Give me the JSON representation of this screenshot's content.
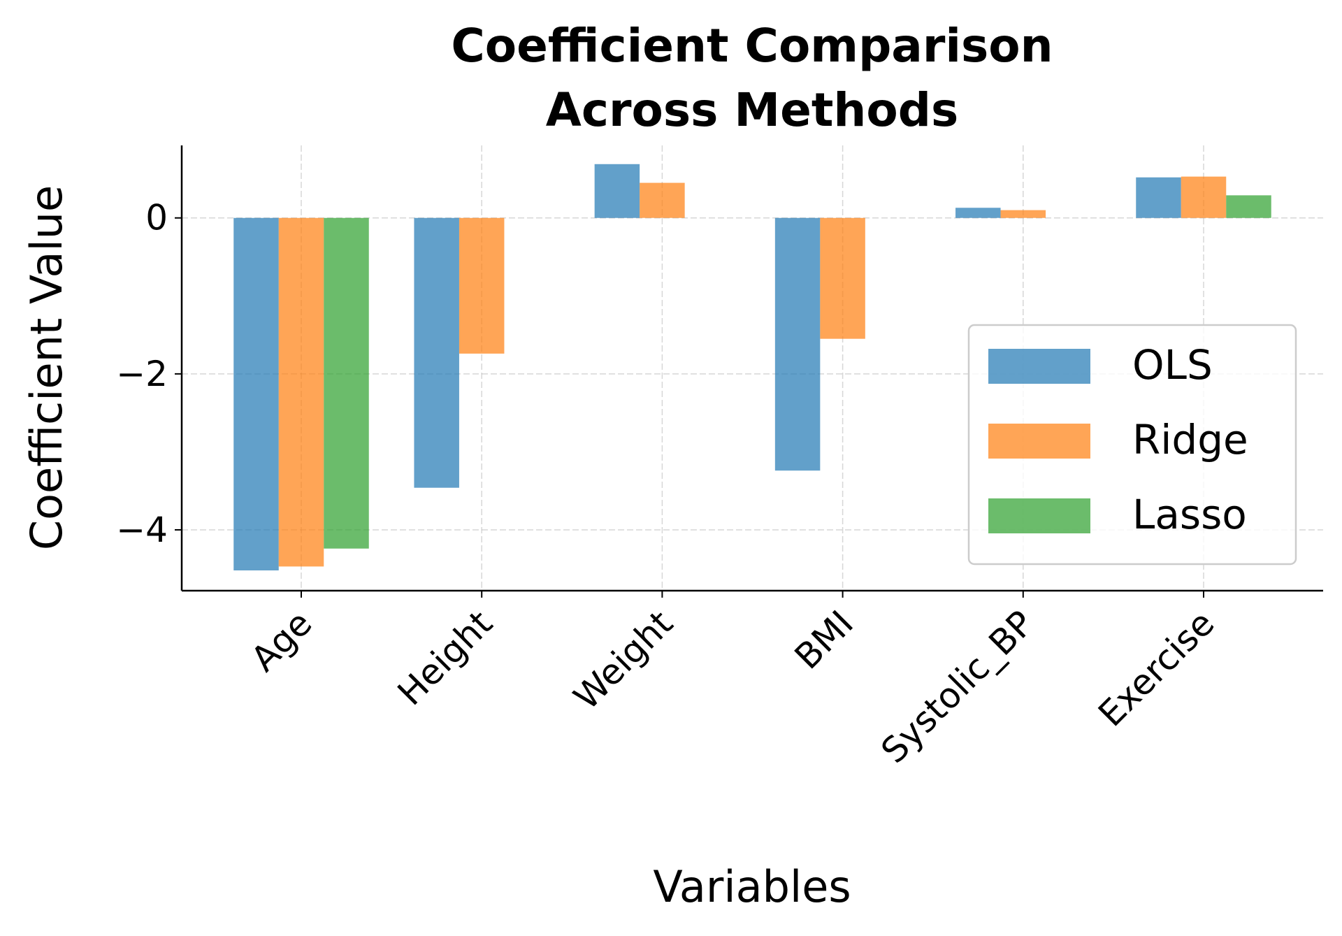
{
  "chart_data": {
    "type": "bar",
    "title": "Coefficient Comparison\nAcross Methods",
    "title_lines": [
      "Coefficient Comparison",
      "Across Methods"
    ],
    "xlabel": "Variables",
    "ylabel": "Coefficient Value",
    "categories": [
      "Age",
      "Height",
      "Weight",
      "BMI",
      "Systolic_BP",
      "Exercise"
    ],
    "series": [
      {
        "name": "OLS",
        "color": "#1f77b4",
        "values": [
          -4.52,
          -3.46,
          0.69,
          -3.24,
          0.13,
          0.52
        ]
      },
      {
        "name": "Ridge",
        "color": "#ff7f0e",
        "values": [
          -4.47,
          -1.74,
          0.45,
          -1.55,
          0.1,
          0.53
        ]
      },
      {
        "name": "Lasso",
        "color": "#2ca02c",
        "values": [
          -4.24,
          0.0,
          0.0,
          0.0,
          0.0,
          0.29
        ]
      }
    ],
    "bar_alpha": 0.7,
    "ylim": [
      -4.78,
      0.93
    ],
    "yticks": [
      0,
      -2,
      -4
    ],
    "ytick_labels": [
      "0",
      "−2",
      "−4"
    ],
    "grid": true,
    "legend_placement": "center-right"
  }
}
